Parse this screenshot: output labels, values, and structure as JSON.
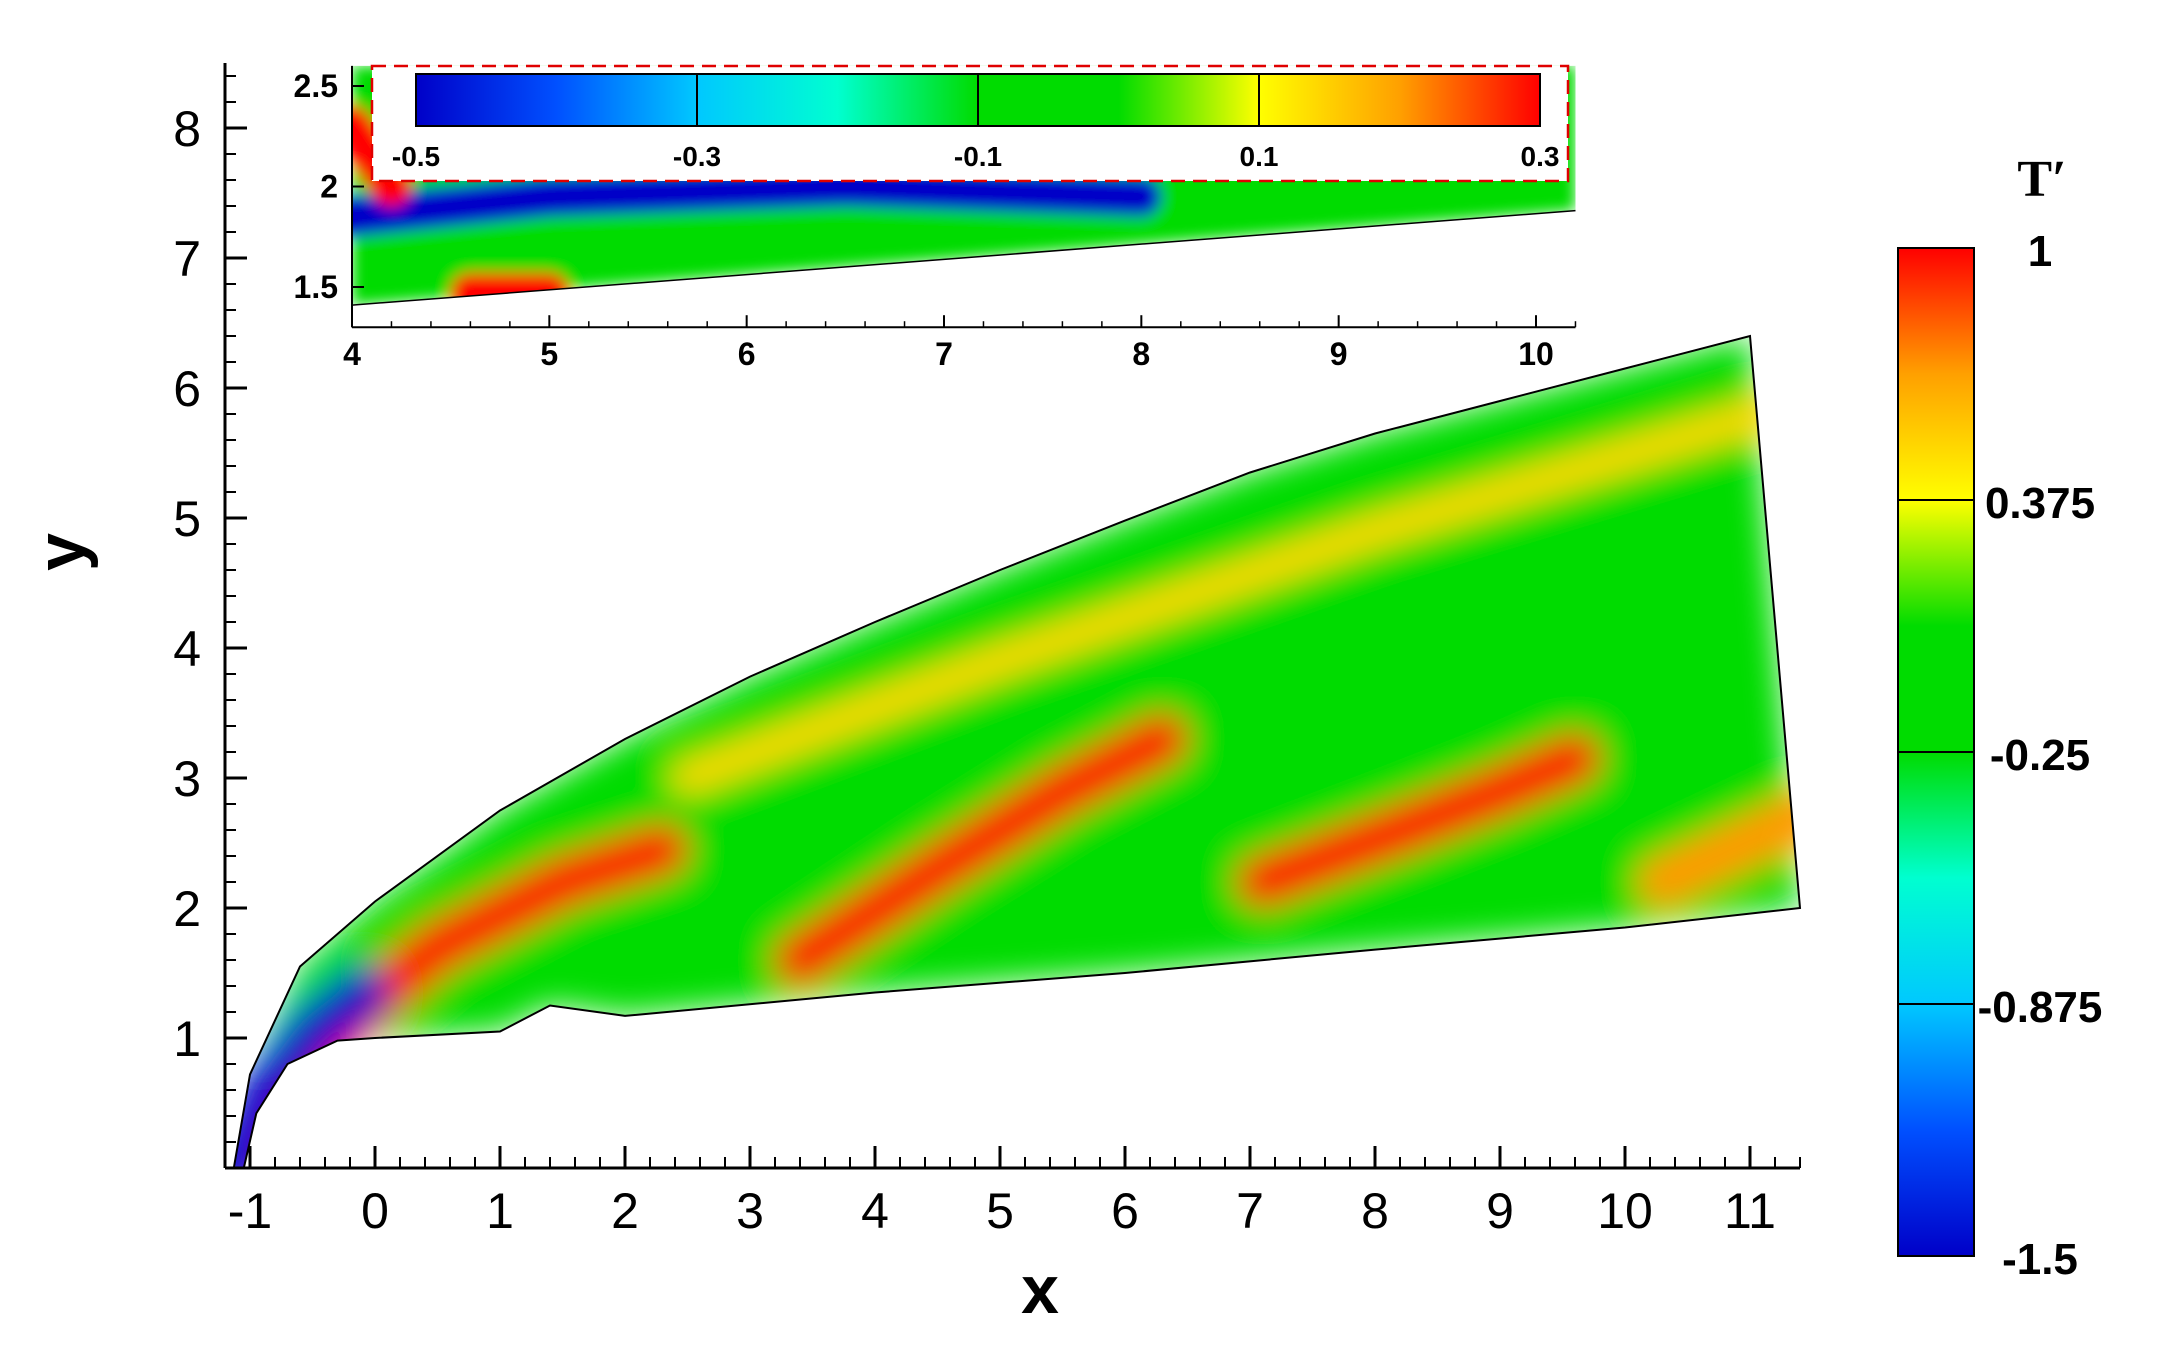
{
  "chart_data": [
    {
      "type": "heatmap",
      "title": "",
      "xlabel": "x",
      "ylabel": "y",
      "xlim": [
        -1.2,
        11.4
      ],
      "ylim": [
        0,
        8.5
      ],
      "xticks": [
        -1,
        0,
        1,
        2,
        3,
        4,
        5,
        6,
        7,
        8,
        9,
        10,
        11
      ],
      "yticks": [
        1,
        2,
        3,
        4,
        5,
        6,
        7,
        8
      ],
      "xtick_labels": [
        "-1",
        "0",
        "1",
        "2",
        "3",
        "4",
        "5",
        "6",
        "7",
        "8",
        "9",
        "10",
        "11"
      ],
      "ytick_labels": [
        "1",
        "2",
        "3",
        "4",
        "5",
        "6",
        "7",
        "8"
      ],
      "domain": {
        "outer_boundary": [
          [
            -1.13,
            0
          ],
          [
            -1.0,
            0.72
          ],
          [
            -0.6,
            1.55
          ],
          [
            0,
            2.05
          ],
          [
            1,
            2.75
          ],
          [
            2,
            3.3
          ],
          [
            3,
            3.78
          ],
          [
            4,
            4.2
          ],
          [
            5,
            4.6
          ],
          [
            6,
            4.98
          ],
          [
            7,
            5.35
          ],
          [
            8,
            5.65
          ],
          [
            9,
            5.9
          ],
          [
            10,
            6.15
          ],
          [
            11,
            6.4
          ]
        ],
        "inner_boundary": [
          [
            -1.05,
            0
          ],
          [
            -0.95,
            0.42
          ],
          [
            -0.7,
            0.8
          ],
          [
            -0.3,
            0.98
          ],
          [
            0,
            1.0
          ],
          [
            1,
            1.05
          ],
          [
            1.4,
            1.25
          ],
          [
            2,
            1.17
          ],
          [
            4,
            1.35
          ],
          [
            6,
            1.5
          ],
          [
            8,
            1.68
          ],
          [
            10,
            1.85
          ],
          [
            11.4,
            2.0
          ]
        ],
        "outflow_boundary": [
          [
            11.0,
            6.4
          ],
          [
            11.4,
            2.0
          ]
        ]
      },
      "colorbar": {
        "title": "T′",
        "min": -1.5,
        "max": 1,
        "tick_labels": [
          "1",
          "0.375",
          "-0.25",
          "-0.875",
          "-1.5"
        ],
        "tick_values": [
          1,
          0.375,
          -0.25,
          -0.875,
          -1.5
        ],
        "colors": [
          "#0000c8",
          "#0050ff",
          "#00c8ff",
          "#00ffd0",
          "#00dc00",
          "#00dc00",
          "#ffff00",
          "#ffa000",
          "#ff0000"
        ]
      },
      "features": [
        {
          "label": "hot streak near leading edge",
          "value": 1,
          "path": [
            [
              -1.0,
              0.15
            ],
            [
              -0.5,
              0.9
            ],
            [
              0.5,
              1.7
            ],
            [
              1.5,
              2.2
            ],
            [
              2.3,
              2.45
            ]
          ]
        },
        {
          "label": "cold streak near wall",
          "value": -1.5,
          "path": [
            [
              -1.1,
              0.0
            ],
            [
              -0.85,
              0.6
            ],
            [
              -0.5,
              1.05
            ],
            [
              -0.1,
              1.35
            ]
          ]
        },
        {
          "label": "hot streak band 2",
          "value": 1,
          "path": [
            [
              3.4,
              1.6
            ],
            [
              4.5,
              2.3
            ],
            [
              5.5,
              2.9
            ],
            [
              6.3,
              3.3
            ]
          ]
        },
        {
          "label": "hot streak band 3",
          "value": 1,
          "path": [
            [
              7.1,
              2.2
            ],
            [
              8.2,
              2.6
            ],
            [
              9.0,
              2.9
            ],
            [
              9.6,
              3.15
            ]
          ]
        },
        {
          "label": "hot streak band 4",
          "value": 0.7,
          "path": [
            [
              10.3,
              2.2
            ],
            [
              11.4,
              2.7
            ]
          ]
        },
        {
          "label": "warm upper streak",
          "value": 0.5,
          "path": [
            [
              2.5,
              3.0
            ],
            [
              5.0,
              3.9
            ],
            [
              8.0,
              4.9
            ],
            [
              11.1,
              5.8
            ]
          ]
        }
      ]
    },
    {
      "type": "heatmap",
      "title": "",
      "xlabel": "",
      "ylabel": "",
      "xlim": [
        4,
        10.2
      ],
      "ylim": [
        1.3,
        2.6
      ],
      "xticks": [
        4,
        5,
        6,
        7,
        8,
        9,
        10
      ],
      "yticks": [
        1.5,
        2,
        2.5
      ],
      "xtick_labels": [
        "4",
        "5",
        "6",
        "7",
        "8",
        "9",
        "10"
      ],
      "ytick_labels": [
        "1.5",
        "2",
        "2.5"
      ],
      "colorbar": {
        "orientation": "horizontal",
        "min": -0.5,
        "max": 0.3,
        "tick_labels": [
          "-0.5",
          "-0.3",
          "-0.1",
          "0.1",
          "0.3"
        ],
        "tick_values": [
          -0.5,
          -0.3,
          -0.1,
          0.1,
          0.3
        ],
        "colors": [
          "#0000c8",
          "#0050ff",
          "#00c8ff",
          "#00ffd0",
          "#00dc00",
          "#00dc00",
          "#ffff00",
          "#ffa000",
          "#ff0000"
        ]
      },
      "features": [
        {
          "label": "cold region",
          "value": -0.5,
          "path": [
            [
              4.0,
              1.85
            ],
            [
              5.0,
              1.95
            ],
            [
              6.5,
              2.0
            ],
            [
              8.0,
              1.95
            ]
          ]
        },
        {
          "label": "hot spot",
          "value": 0.3,
          "path": [
            [
              4.6,
              1.47
            ],
            [
              5.0,
              1.47
            ]
          ]
        },
        {
          "label": "hot spot upper left",
          "value": 0.3,
          "path": [
            [
              4.0,
              2.3
            ],
            [
              4.2,
              2.0
            ]
          ]
        }
      ]
    }
  ]
}
